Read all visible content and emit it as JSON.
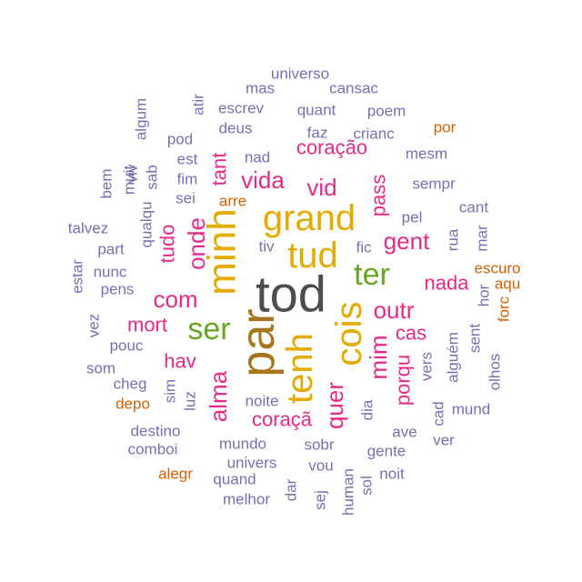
{
  "chart_data": {
    "type": "wordcloud",
    "title": "",
    "colors": {
      "dark_gray": "#4d4d4d",
      "brown": "#a6761d",
      "gold": "#e6ab02",
      "green": "#66a61e",
      "magenta": "#e7298a",
      "purple": "#7570b3",
      "orange": "#d95f02"
    },
    "words": [
      {
        "text": "tod",
        "weight": 10,
        "color": "dark_gray",
        "rotate": 0
      },
      {
        "text": "par",
        "weight": 9,
        "color": "brown",
        "rotate": -90
      },
      {
        "text": "minh",
        "weight": 8,
        "color": "gold",
        "rotate": -90
      },
      {
        "text": "grand",
        "weight": 7,
        "color": "gold",
        "rotate": 0
      },
      {
        "text": "tud",
        "weight": 7,
        "color": "gold",
        "rotate": 0
      },
      {
        "text": "tenh",
        "weight": 7,
        "color": "gold",
        "rotate": -90
      },
      {
        "text": "cois",
        "weight": 7,
        "color": "gold",
        "rotate": -90
      },
      {
        "text": "ser",
        "weight": 6,
        "color": "green",
        "rotate": 0
      },
      {
        "text": "ter",
        "weight": 6,
        "color": "green",
        "rotate": 0
      },
      {
        "text": "vida",
        "weight": 5,
        "color": "magenta",
        "rotate": 0
      },
      {
        "text": "vid",
        "weight": 5,
        "color": "magenta",
        "rotate": 0
      },
      {
        "text": "com",
        "weight": 5,
        "color": "magenta",
        "rotate": 0
      },
      {
        "text": "alma",
        "weight": 5,
        "color": "magenta",
        "rotate": -90
      },
      {
        "text": "onde",
        "weight": 5,
        "color": "magenta",
        "rotate": -90
      },
      {
        "text": "gent",
        "weight": 5,
        "color": "magenta",
        "rotate": 0
      },
      {
        "text": "outr",
        "weight": 5,
        "color": "magenta",
        "rotate": 0
      },
      {
        "text": "mim",
        "weight": 5,
        "color": "magenta",
        "rotate": -90
      },
      {
        "text": "quer",
        "weight": 5,
        "color": "magenta",
        "rotate": -90
      },
      {
        "text": "coração",
        "weight": 4,
        "color": "magenta",
        "rotate": 0
      },
      {
        "text": "coraçã",
        "weight": 4,
        "color": "magenta",
        "rotate": 0
      },
      {
        "text": "pass",
        "weight": 4,
        "color": "magenta",
        "rotate": -90
      },
      {
        "text": "tant",
        "weight": 4,
        "color": "magenta",
        "rotate": -90
      },
      {
        "text": "tudo",
        "weight": 4,
        "color": "magenta",
        "rotate": -90
      },
      {
        "text": "nada",
        "weight": 4,
        "color": "magenta",
        "rotate": 0
      },
      {
        "text": "mort",
        "weight": 4,
        "color": "magenta",
        "rotate": 0
      },
      {
        "text": "hav",
        "weight": 4,
        "color": "magenta",
        "rotate": 0
      },
      {
        "text": "cas",
        "weight": 4,
        "color": "magenta",
        "rotate": 0
      },
      {
        "text": "porqu",
        "weight": 4,
        "color": "magenta",
        "rotate": -90
      },
      {
        "text": "universo",
        "weight": 2,
        "color": "purple",
        "rotate": 0
      },
      {
        "text": "mas",
        "weight": 2,
        "color": "purple",
        "rotate": 0
      },
      {
        "text": "cansac",
        "weight": 2,
        "color": "purple",
        "rotate": 0
      },
      {
        "text": "atir",
        "weight": 2,
        "color": "purple",
        "rotate": -90
      },
      {
        "text": "escrev",
        "weight": 2,
        "color": "purple",
        "rotate": 0
      },
      {
        "text": "quant",
        "weight": 2,
        "color": "purple",
        "rotate": 0
      },
      {
        "text": "poem",
        "weight": 2,
        "color": "purple",
        "rotate": 0
      },
      {
        "text": "algum",
        "weight": 2,
        "color": "purple",
        "rotate": -90
      },
      {
        "text": "deus",
        "weight": 2,
        "color": "purple",
        "rotate": 0
      },
      {
        "text": "faz",
        "weight": 2,
        "color": "purple",
        "rotate": 0
      },
      {
        "text": "crianc",
        "weight": 2,
        "color": "purple",
        "rotate": 0
      },
      {
        "text": "por",
        "weight": 2,
        "color": "orange",
        "rotate": 0
      },
      {
        "text": "pod",
        "weight": 2,
        "color": "purple",
        "rotate": 0
      },
      {
        "text": "nad",
        "weight": 2,
        "color": "purple",
        "rotate": 0
      },
      {
        "text": "mesm",
        "weight": 2,
        "color": "purple",
        "rotate": 0
      },
      {
        "text": "est",
        "weight": 2,
        "color": "purple",
        "rotate": 0
      },
      {
        "text": "muit",
        "weight": 2,
        "color": "purple",
        "rotate": -90
      },
      {
        "text": "viv",
        "weight": 2,
        "color": "purple",
        "rotate": -90
      },
      {
        "text": "sab",
        "weight": 2,
        "color": "purple",
        "rotate": -90
      },
      {
        "text": "fim",
        "weight": 2,
        "color": "purple",
        "rotate": 0
      },
      {
        "text": "bem",
        "weight": 2,
        "color": "purple",
        "rotate": -90
      },
      {
        "text": "sempr",
        "weight": 2,
        "color": "purple",
        "rotate": 0
      },
      {
        "text": "sei",
        "weight": 2,
        "color": "purple",
        "rotate": 0
      },
      {
        "text": "arre",
        "weight": 2,
        "color": "orange",
        "rotate": 0
      },
      {
        "text": "cant",
        "weight": 2,
        "color": "purple",
        "rotate": 0
      },
      {
        "text": "qualqu",
        "weight": 2,
        "color": "purple",
        "rotate": -90
      },
      {
        "text": "talvez",
        "weight": 2,
        "color": "purple",
        "rotate": 0
      },
      {
        "text": "pel",
        "weight": 2,
        "color": "purple",
        "rotate": 0
      },
      {
        "text": "rua",
        "weight": 2,
        "color": "purple",
        "rotate": -90
      },
      {
        "text": "mar",
        "weight": 2,
        "color": "purple",
        "rotate": -90
      },
      {
        "text": "tiv",
        "weight": 2,
        "color": "purple",
        "rotate": 0
      },
      {
        "text": "fic",
        "weight": 2,
        "color": "purple",
        "rotate": 0
      },
      {
        "text": "part",
        "weight": 2,
        "color": "purple",
        "rotate": 0
      },
      {
        "text": "escuro",
        "weight": 2,
        "color": "orange",
        "rotate": 0
      },
      {
        "text": "aqu",
        "weight": 2,
        "color": "orange",
        "rotate": 0
      },
      {
        "text": "estar",
        "weight": 2,
        "color": "purple",
        "rotate": -90
      },
      {
        "text": "nunc",
        "weight": 2,
        "color": "purple",
        "rotate": 0
      },
      {
        "text": "pens",
        "weight": 2,
        "color": "purple",
        "rotate": 0
      },
      {
        "text": "hor",
        "weight": 2,
        "color": "purple",
        "rotate": -90
      },
      {
        "text": "forc",
        "weight": 2,
        "color": "orange",
        "rotate": -90
      },
      {
        "text": "vez",
        "weight": 2,
        "color": "purple",
        "rotate": -90
      },
      {
        "text": "sent",
        "weight": 2,
        "color": "purple",
        "rotate": -90
      },
      {
        "text": "pouc",
        "weight": 2,
        "color": "purple",
        "rotate": 0
      },
      {
        "text": "alguém",
        "weight": 2,
        "color": "purple",
        "rotate": -90
      },
      {
        "text": "vers",
        "weight": 2,
        "color": "purple",
        "rotate": -90
      },
      {
        "text": "olhos",
        "weight": 2,
        "color": "purple",
        "rotate": -90
      },
      {
        "text": "som",
        "weight": 2,
        "color": "purple",
        "rotate": 0
      },
      {
        "text": "cheg",
        "weight": 2,
        "color": "purple",
        "rotate": 0
      },
      {
        "text": "sim",
        "weight": 2,
        "color": "purple",
        "rotate": -90
      },
      {
        "text": "luz",
        "weight": 2,
        "color": "purple",
        "rotate": -90
      },
      {
        "text": "noite",
        "weight": 2,
        "color": "purple",
        "rotate": 0
      },
      {
        "text": "dia",
        "weight": 2,
        "color": "purple",
        "rotate": -90
      },
      {
        "text": "cad",
        "weight": 2,
        "color": "purple",
        "rotate": -90
      },
      {
        "text": "mund",
        "weight": 2,
        "color": "purple",
        "rotate": 0
      },
      {
        "text": "depo",
        "weight": 2,
        "color": "orange",
        "rotate": 0
      },
      {
        "text": "destino",
        "weight": 2,
        "color": "purple",
        "rotate": 0
      },
      {
        "text": "ave",
        "weight": 2,
        "color": "purple",
        "rotate": 0
      },
      {
        "text": "ver",
        "weight": 2,
        "color": "purple",
        "rotate": 0
      },
      {
        "text": "mundo",
        "weight": 2,
        "color": "purple",
        "rotate": 0
      },
      {
        "text": "sobr",
        "weight": 2,
        "color": "purple",
        "rotate": 0
      },
      {
        "text": "comboi",
        "weight": 2,
        "color": "purple",
        "rotate": 0
      },
      {
        "text": "univers",
        "weight": 2,
        "color": "purple",
        "rotate": 0
      },
      {
        "text": "gente",
        "weight": 2,
        "color": "purple",
        "rotate": 0
      },
      {
        "text": "vou",
        "weight": 2,
        "color": "purple",
        "rotate": 0
      },
      {
        "text": "noit",
        "weight": 2,
        "color": "purple",
        "rotate": 0
      },
      {
        "text": "alegr",
        "weight": 2,
        "color": "orange",
        "rotate": 0
      },
      {
        "text": "quand",
        "weight": 2,
        "color": "purple",
        "rotate": 0
      },
      {
        "text": "sol",
        "weight": 2,
        "color": "purple",
        "rotate": -90
      },
      {
        "text": "dar",
        "weight": 2,
        "color": "purple",
        "rotate": -90
      },
      {
        "text": "melhor",
        "weight": 2,
        "color": "purple",
        "rotate": 0
      },
      {
        "text": "sej",
        "weight": 2,
        "color": "purple",
        "rotate": -90
      },
      {
        "text": "human",
        "weight": 2,
        "color": "purple",
        "rotate": -90
      }
    ]
  }
}
